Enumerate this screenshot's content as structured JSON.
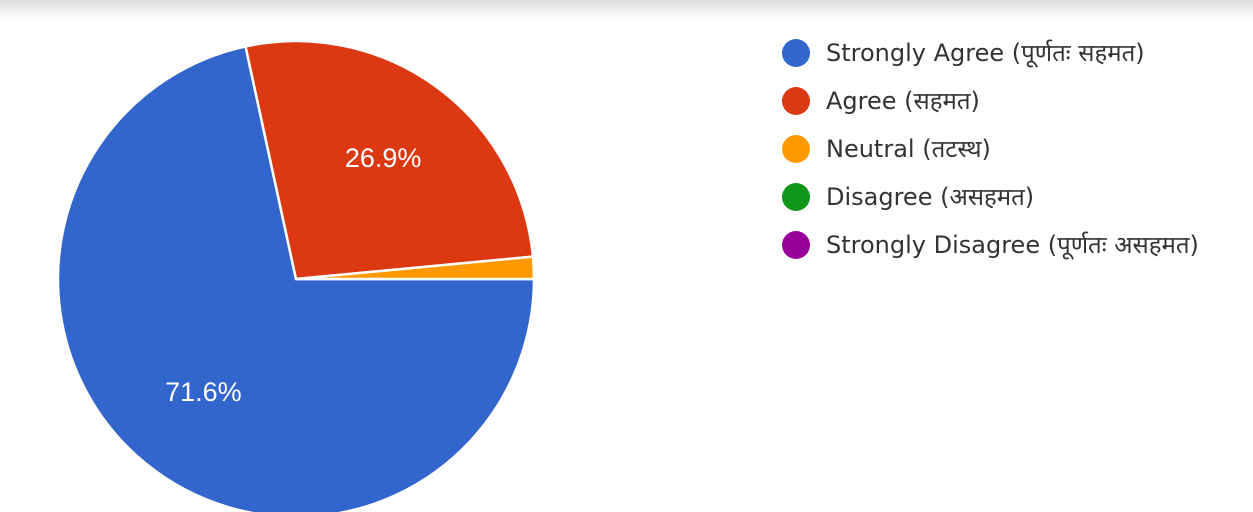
{
  "chart_data": {
    "type": "pie",
    "title": "",
    "legend_position": "right",
    "slices": [
      {
        "label": "Strongly Agree (पूर्णतः सहमत)",
        "value": 71.6,
        "display": "71.6%",
        "color": "#3366cc"
      },
      {
        "label": "Agree (सहमत)",
        "value": 26.9,
        "display": "26.9%",
        "color": "#dc3912"
      },
      {
        "label": "Neutral (तटस्थ)",
        "value": 1.5,
        "display": "",
        "color": "#ff9900"
      },
      {
        "label": "Disagree (असहमत)",
        "value": 0,
        "display": "",
        "color": "#109618"
      },
      {
        "label": "Strongly Disagree (पूर्णतः असहमत)",
        "value": 0,
        "display": "",
        "color": "#990099"
      }
    ]
  }
}
